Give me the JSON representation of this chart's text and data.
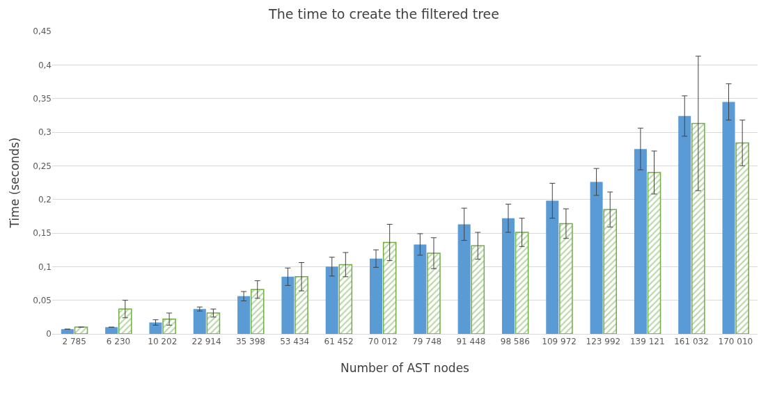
{
  "chart_data": {
    "type": "bar",
    "title": "The time to create the filtered tree",
    "xlabel": "Number of AST nodes",
    "ylabel": "Time (seconds)",
    "categories": [
      "2 785",
      "6 230",
      "10 202",
      "22 914",
      "35 398",
      "53 434",
      "61 452",
      "70 012",
      "79 748",
      "91 448",
      "98 586",
      "109 972",
      "123 992",
      "139 121",
      "161 032",
      "170 010"
    ],
    "series": [
      {
        "color": "#5b9bd5",
        "values": [
          0.007,
          0.01,
          0.017,
          0.037,
          0.056,
          0.085,
          0.1,
          0.112,
          0.133,
          0.163,
          0.172,
          0.198,
          0.226,
          0.275,
          0.324,
          0.345
        ],
        "errors": [
          null,
          null,
          0.004,
          0.003,
          0.007,
          0.013,
          0.014,
          0.013,
          0.016,
          0.024,
          0.021,
          0.026,
          0.02,
          0.031,
          0.03,
          0.027
        ]
      },
      {
        "color": "#70ad47",
        "values": [
          0.01,
          0.037,
          0.022,
          0.031,
          0.066,
          0.085,
          0.103,
          0.136,
          0.12,
          0.131,
          0.151,
          0.164,
          0.185,
          0.24,
          0.313,
          0.284
        ],
        "errors": [
          null,
          0.013,
          0.009,
          0.006,
          0.013,
          0.021,
          0.018,
          0.027,
          0.023,
          0.02,
          0.021,
          0.022,
          0.026,
          0.032,
          0.1,
          0.034
        ]
      }
    ],
    "ylim": [
      0,
      0.45
    ],
    "yticks": [
      0,
      {
        "value": 0.05,
        "label": "0,05"
      },
      {
        "value": 0.1,
        "label": "0,1"
      },
      {
        "value": 0.15,
        "label": "0,15"
      },
      {
        "value": 0.2,
        "label": "0,2"
      },
      {
        "value": 0.25,
        "label": "0,25"
      },
      {
        "value": 0.3,
        "label": "0,3"
      },
      {
        "value": 0.35,
        "label": "0,35"
      },
      {
        "value": 0.4,
        "label": "0,4"
      },
      {
        "value": 0.45,
        "label": "0,45"
      }
    ],
    "grid": "y"
  }
}
